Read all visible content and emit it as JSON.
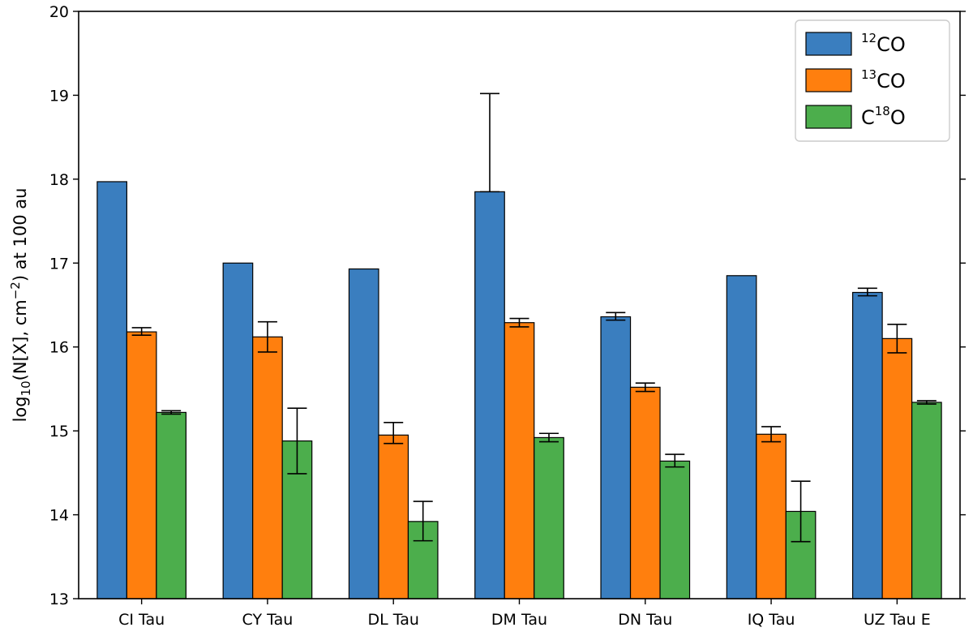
{
  "chart_data": {
    "type": "bar",
    "title": "",
    "xlabel": "",
    "ylabel": {
      "prefix": "log",
      "sub": "10",
      "middle": "(N[X], cm",
      "sup": "−2",
      "suffix": ") at 100 au"
    },
    "ylim": [
      13,
      20
    ],
    "yticks": [
      "13",
      "14",
      "15",
      "16",
      "17",
      "18",
      "19",
      "20"
    ],
    "categories": [
      "CI Tau",
      "CY Tau",
      "DL Tau",
      "DM Tau",
      "DN Tau",
      "IQ Tau",
      "UZ Tau E"
    ],
    "legend_position": "top-right",
    "grid": false,
    "series": [
      {
        "name": {
          "pre": "",
          "sup": "12",
          "post": "CO"
        },
        "color": "#3a7ebf",
        "values": [
          17.97,
          17.0,
          16.93,
          17.85,
          16.36,
          16.85,
          16.65
        ],
        "errors": [
          null,
          null,
          null,
          [
            17.85,
            19.02
          ],
          [
            16.32,
            16.41
          ],
          null,
          [
            16.61,
            16.7
          ]
        ]
      },
      {
        "name": {
          "pre": "",
          "sup": "13",
          "post": "CO"
        },
        "color": "#ff7f0e",
        "values": [
          16.18,
          16.12,
          14.95,
          16.29,
          15.52,
          14.96,
          16.1
        ],
        "errors": [
          [
            16.14,
            16.23
          ],
          [
            15.94,
            16.3
          ],
          [
            14.85,
            15.1
          ],
          [
            16.24,
            16.34
          ],
          [
            15.47,
            15.57
          ],
          [
            14.87,
            15.05
          ],
          [
            15.93,
            16.27
          ]
        ]
      },
      {
        "name": {
          "pre": "C",
          "sup": "18",
          "post": "O"
        },
        "color": "#4cae4c",
        "values": [
          15.22,
          14.88,
          13.92,
          14.92,
          14.64,
          14.04,
          15.34
        ],
        "errors": [
          [
            15.2,
            15.24
          ],
          [
            14.49,
            15.27
          ],
          [
            13.69,
            14.16
          ],
          [
            14.87,
            14.97
          ],
          [
            14.57,
            14.72
          ],
          [
            13.68,
            14.4
          ],
          [
            15.32,
            15.36
          ]
        ]
      }
    ]
  }
}
